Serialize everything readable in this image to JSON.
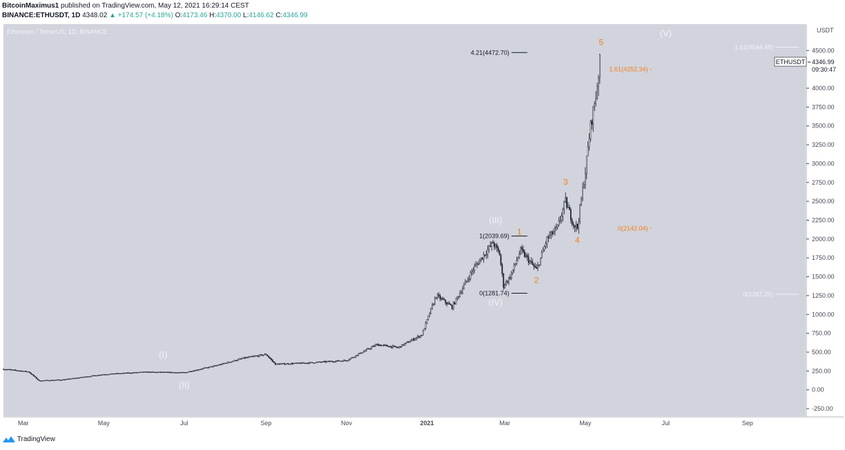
{
  "header": {
    "publisher": "BitcoinMaximus1",
    "published_text": "published on TradingView.com, May 12, 2021 16:29:14 CEST",
    "symbol": "BINANCE:ETHUSDT, 1D",
    "last": "4348.02",
    "change_arrow": "▲",
    "change": "+174.57 (+4.18%)",
    "open_label": "O:",
    "open": "4173.46",
    "high_label": "H:",
    "high": "4370.00",
    "low_label": "L:",
    "low": "4146.62",
    "close_label": "C:",
    "close": "4346.99"
  },
  "footer": {
    "brand": "TradingView",
    "logo_icon": "tradingview-logo-icon"
  },
  "colors": {
    "plot_bg": "#d1d4dc",
    "candle": "#131722",
    "wave_white": "#f0f3fa",
    "wave_orange": "#f57f17",
    "fib_dark": "#131722"
  },
  "chart_data": {
    "type": "candlestick",
    "title": "Ethereum / TetherUS, 1D, BINANCE",
    "currency_label": "USDT",
    "ylim": [
      -350,
      4850
    ],
    "y_ticks": [
      -250,
      0,
      250,
      500,
      750,
      1000,
      1250,
      1500,
      1750,
      2000,
      2250,
      2500,
      2750,
      3000,
      3250,
      3500,
      3750,
      4000,
      4500
    ],
    "y_tick_labels": [
      "-250.00",
      "0.00",
      "250.00",
      "500.00",
      "750.00",
      "1000.00",
      "1250.00",
      "1500.00",
      "1750.00",
      "2000.00",
      "2250.00",
      "2500.00",
      "2750.00",
      "3000.00",
      "3250.00",
      "3500.00",
      "3750.00",
      "4000.00",
      "4500.00"
    ],
    "x_range": [
      "2020-02-15",
      "2021-10-15"
    ],
    "x_ticks": [
      {
        "date": "2020-03-01",
        "label": "Mar"
      },
      {
        "date": "2020-05-01",
        "label": "May"
      },
      {
        "date": "2020-07-01",
        "label": "Jul"
      },
      {
        "date": "2020-09-01",
        "label": "Sep"
      },
      {
        "date": "2020-11-01",
        "label": "Nov"
      },
      {
        "date": "2021-01-01",
        "label": "2021"
      },
      {
        "date": "2021-03-01",
        "label": "Mar"
      },
      {
        "date": "2021-05-01",
        "label": "May"
      },
      {
        "date": "2021-07-01",
        "label": "Jul"
      },
      {
        "date": "2021-09-01",
        "label": "Sep"
      }
    ],
    "price_path": [
      [
        "2020-02-15",
        275
      ],
      [
        "2020-03-05",
        240
      ],
      [
        "2020-03-13",
        120
      ],
      [
        "2020-04-01",
        135
      ],
      [
        "2020-05-01",
        205
      ],
      [
        "2020-06-01",
        235
      ],
      [
        "2020-07-01",
        228
      ],
      [
        "2020-07-25",
        320
      ],
      [
        "2020-08-15",
        420
      ],
      [
        "2020-09-01",
        470
      ],
      [
        "2020-09-08",
        340
      ],
      [
        "2020-10-01",
        355
      ],
      [
        "2020-11-01",
        390
      ],
      [
        "2020-11-24",
        600
      ],
      [
        "2020-12-10",
        560
      ],
      [
        "2020-12-28",
        730
      ],
      [
        "2021-01-08",
        1250
      ],
      [
        "2021-01-20",
        1100
      ],
      [
        "2021-02-05",
        1600
      ],
      [
        "2021-02-20",
        1950
      ],
      [
        "2021-02-25",
        1800
      ],
      [
        "2021-02-28",
        1380
      ],
      [
        "2021-03-05",
        1500
      ],
      [
        "2021-03-13",
        1850
      ],
      [
        "2021-03-25",
        1590
      ],
      [
        "2021-04-02",
        2000
      ],
      [
        "2021-04-10",
        2150
      ],
      [
        "2021-04-16",
        2500
      ],
      [
        "2021-04-22",
        2200
      ],
      [
        "2021-04-25",
        2150
      ],
      [
        "2021-05-01",
        2900
      ],
      [
        "2021-05-05",
        3500
      ],
      [
        "2021-05-09",
        3900
      ],
      [
        "2021-05-11",
        4200
      ],
      [
        "2021-05-12",
        4348
      ]
    ],
    "last_price_label": "ETHUSDT",
    "last_price": "4346.99",
    "countdown": "09:30:47",
    "wave_labels": [
      {
        "text": "(I)",
        "date": "2020-06-15",
        "price": 425,
        "color": "white"
      },
      {
        "text": "(II)",
        "date": "2020-07-01",
        "price": 25,
        "color": "white"
      },
      {
        "text": "(III)",
        "date": "2021-02-22",
        "price": 2210,
        "color": "white"
      },
      {
        "text": "(IV)",
        "date": "2021-02-22",
        "price": 1120,
        "color": "white"
      },
      {
        "text": "(V)",
        "date": "2021-07-01",
        "price": 4690,
        "color": "white"
      },
      {
        "text": "1",
        "date": "2021-03-12",
        "price": 2060,
        "color": "orange"
      },
      {
        "text": "2",
        "date": "2021-03-25",
        "price": 1420,
        "color": "orange"
      },
      {
        "text": "3",
        "date": "2021-04-16",
        "price": 2720,
        "color": "orange"
      },
      {
        "text": "4",
        "date": "2021-04-25",
        "price": 1950,
        "color": "orange"
      },
      {
        "text": "5",
        "date": "2021-05-13",
        "price": 4570,
        "color": "orange"
      }
    ],
    "fib_levels": [
      {
        "label": "4.21(4472.70)",
        "price": 4472.7,
        "date_from": "2021-03-06",
        "date_to": "2021-03-18",
        "color": "dark"
      },
      {
        "label": "1(2039.69)",
        "price": 2039.69,
        "date_from": "2021-03-06",
        "date_to": "2021-03-18",
        "color": "dark"
      },
      {
        "label": "0(1281.74)",
        "price": 1281.74,
        "date_from": "2021-03-06",
        "date_to": "2021-03-18",
        "color": "dark"
      },
      {
        "label": "1.61(4252.34)",
        "price": 4252.34,
        "date_from": "2021-06-19",
        "date_to": "2021-06-20",
        "color": "orange"
      },
      {
        "label": "0(2142.04)",
        "price": 2142.04,
        "date_from": "2021-06-19",
        "date_to": "2021-06-20",
        "color": "orange"
      },
      {
        "label": "1.61(4544.48)",
        "price": 4544.48,
        "date_from": "2021-09-22",
        "date_to": "2021-10-10",
        "color": "white"
      },
      {
        "label": "0(1267.25)",
        "price": 1267.25,
        "date_from": "2021-09-22",
        "date_to": "2021-10-10",
        "color": "white"
      }
    ]
  }
}
